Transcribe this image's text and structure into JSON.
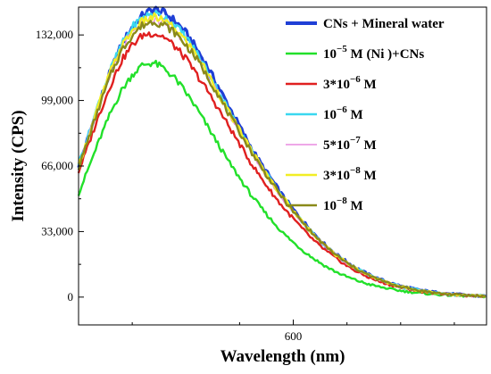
{
  "chart_data": {
    "type": "line",
    "xlabel": "Wavelength (nm)",
    "ylabel": "Intensity (CPS)",
    "xlim": [
      500,
      690
    ],
    "ylim": [
      -14000,
      146000
    ],
    "x_ticks": [
      600
    ],
    "x_tick_labels": [
      "600"
    ],
    "y_ticks": [
      0,
      33000,
      66000,
      99000,
      132000
    ],
    "y_tick_labels": [
      "0",
      "33,000",
      "66,000",
      "99,000",
      "132,000"
    ],
    "grid": false,
    "legend_position": "top-right",
    "x": [
      500,
      505,
      510,
      515,
      520,
      525,
      530,
      535,
      540,
      545,
      550,
      555,
      560,
      565,
      570,
      575,
      580,
      585,
      590,
      595,
      600,
      605,
      610,
      615,
      620,
      625,
      630,
      635,
      640,
      645,
      650,
      655,
      660,
      665,
      670,
      675,
      680,
      685,
      690
    ],
    "series": [
      {
        "legend": {
          "base": "CNs + Mineral water",
          "exp": "",
          "suffix": ""
        },
        "color": "#1f3fd6",
        "width": 3.2,
        "dash": "",
        "values": [
          66000,
          82000,
          99000,
          114000,
          127000,
          136000,
          142000,
          145000,
          143000,
          139000,
          133000,
          125000,
          116000,
          106000,
          96000,
          86000,
          76000,
          67000,
          59000,
          51000,
          44000,
          37500,
          31500,
          26000,
          21500,
          17500,
          14200,
          11300,
          9000,
          7100,
          5500,
          4300,
          3300,
          2500,
          1900,
          1400,
          1000,
          700,
          500
        ]
      },
      {
        "legend": {
          "base": "10",
          "exp": "−5",
          "suffix": " M (Ni )+CNs"
        },
        "color": "#22e02a",
        "width": 2.4,
        "dash": "",
        "values": [
          52000,
          66000,
          80000,
          93000,
          104000,
          112000,
          117000,
          118000,
          115000,
          110000,
          103000,
          95000,
          86000,
          77000,
          68000,
          60000,
          52000,
          45000,
          38500,
          32500,
          27500,
          23000,
          19000,
          15500,
          12600,
          10200,
          8200,
          6500,
          5200,
          4100,
          3200,
          2500,
          1900,
          1500,
          1100,
          800,
          600,
          400,
          300
        ]
      },
      {
        "legend": {
          "base": "3*10",
          "exp": "−6",
          "suffix": " M"
        },
        "color": "#e02020",
        "width": 2.4,
        "dash": "",
        "values": [
          63000,
          78000,
          93000,
          107000,
          119000,
          127000,
          132000,
          133000,
          131000,
          126000,
          120000,
          112000,
          104000,
          95000,
          86000,
          77000,
          68000,
          60000,
          52500,
          45500,
          39500,
          33500,
          28000,
          23500,
          19500,
          15700,
          12600,
          10000,
          7900,
          6200,
          4800,
          3700,
          2800,
          2100,
          1600,
          1200,
          800,
          600,
          400
        ]
      },
      {
        "legend": {
          "base": "10",
          "exp": "−6",
          "suffix": " M"
        },
        "color": "#3ad7f0",
        "width": 2.4,
        "dash": "",
        "values": [
          67000,
          83000,
          100000,
          115000,
          127000,
          136000,
          141000,
          143000,
          141000,
          137000,
          131000,
          123000,
          114000,
          104000,
          94000,
          84000,
          75000,
          66000,
          58000,
          50500,
          43500,
          37000,
          31000,
          25700,
          21200,
          17200,
          14000,
          11100,
          8800,
          6900,
          5400,
          4200,
          3200,
          2400,
          1800,
          1300,
          900,
          700,
          500
        ]
      },
      {
        "legend": {
          "base": "5*10",
          "exp": "−7",
          "suffix": " M"
        },
        "color": "#e98be0",
        "width": 1.4,
        "dash": "",
        "values": [
          66000,
          82000,
          98000,
          113000,
          125000,
          133000,
          138000,
          140000,
          138000,
          134000,
          128000,
          121000,
          112000,
          102000,
          92000,
          83000,
          74000,
          65000,
          57000,
          49500,
          42800,
          36500,
          30600,
          25400,
          21000,
          17000,
          13800,
          11000,
          8700,
          6800,
          5300,
          4100,
          3100,
          2300,
          1700,
          1300,
          900,
          700,
          500
        ]
      },
      {
        "legend": {
          "base": "3*10",
          "exp": "−8",
          "suffix": " M"
        },
        "color": "#f2ee25",
        "width": 2.4,
        "dash": "",
        "values": [
          66000,
          82000,
          99000,
          114000,
          126000,
          134000,
          139000,
          141000,
          139000,
          135000,
          129000,
          122000,
          113000,
          103000,
          93000,
          84000,
          75000,
          66000,
          58000,
          50500,
          43500,
          37000,
          31000,
          25700,
          21200,
          17200,
          14000,
          11100,
          8800,
          6900,
          5400,
          4200,
          3200,
          2400,
          1800,
          1300,
          900,
          700,
          500
        ]
      },
      {
        "legend": {
          "base": "10",
          "exp": "−8",
          "suffix": " M"
        },
        "color": "#8a8a1a",
        "width": 2.4,
        "dash": "",
        "values": [
          65000,
          81000,
          97000,
          112000,
          124000,
          132000,
          137000,
          139000,
          137000,
          133000,
          127000,
          120000,
          111000,
          102000,
          92000,
          83000,
          74000,
          65500,
          57500,
          50000,
          43000,
          36800,
          30800,
          25600,
          21100,
          17100,
          13900,
          11000,
          8700,
          6800,
          5300,
          4100,
          3100,
          2300,
          1700,
          1300,
          900,
          700,
          500
        ]
      }
    ]
  }
}
